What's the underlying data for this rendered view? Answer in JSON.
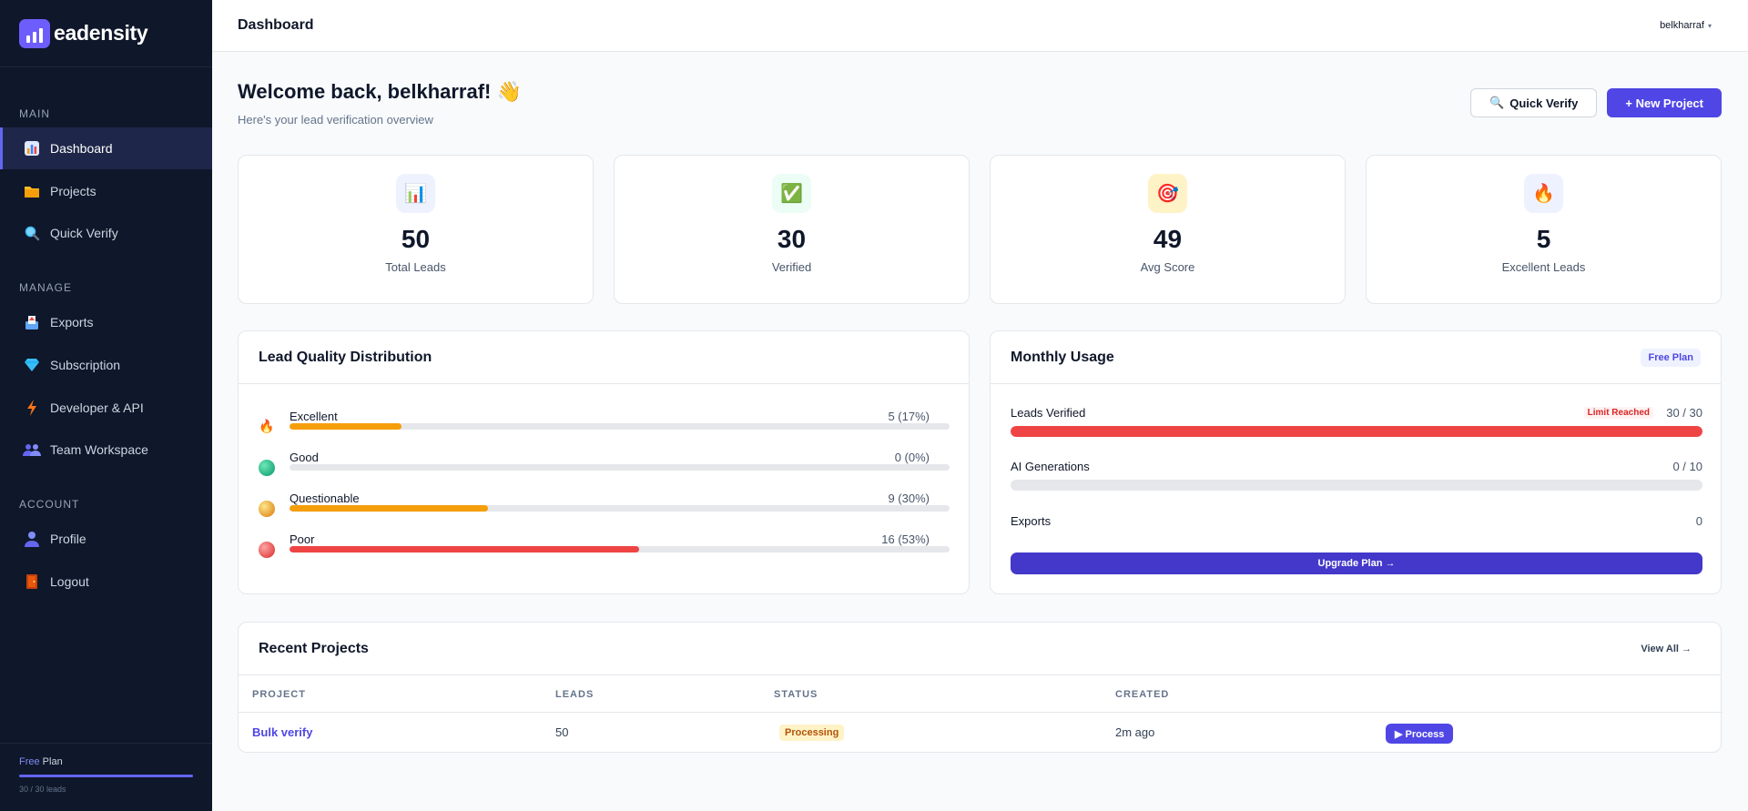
{
  "brand": {
    "name": "eadensity"
  },
  "sidebar": {
    "sections": [
      {
        "label": "MAIN"
      },
      {
        "label": "MANAGE"
      },
      {
        "label": "ACCOUNT"
      }
    ],
    "items": [
      {
        "label": "Dashboard",
        "icon": "bar-chart-icon"
      },
      {
        "label": "Projects",
        "icon": "folder-icon"
      },
      {
        "label": "Quick Verify",
        "icon": "magnifier-icon"
      },
      {
        "label": "Exports",
        "icon": "outbox-icon"
      },
      {
        "label": "Subscription",
        "icon": "diamond-icon"
      },
      {
        "label": "Developer & API",
        "icon": "lightning-icon"
      },
      {
        "label": "Team Workspace",
        "icon": "people-icon"
      },
      {
        "label": "Profile",
        "icon": "person-icon"
      },
      {
        "label": "Logout",
        "icon": "door-icon"
      }
    ],
    "plan": {
      "tier": "Free",
      "suffix": " Plan",
      "usage_text": "30 / 30 leads",
      "usage_fraction": 1.0
    }
  },
  "topbar": {
    "title": "Dashboard",
    "user": "belkharraf",
    "caret": "▾"
  },
  "welcome": {
    "title": "Welcome back, belkharraf! 👋",
    "subtitle": "Here's your lead verification overview"
  },
  "actions": {
    "quick_verify": "Quick Verify",
    "quick_verify_icon": "🔍",
    "new_project": "+ New Project"
  },
  "stats": [
    {
      "value": "50",
      "label": "Total Leads",
      "icon": "📊",
      "icon_bg": "#eef2ff"
    },
    {
      "value": "30",
      "label": "Verified",
      "icon": "✅",
      "icon_bg": "#ecfdf5"
    },
    {
      "value": "49",
      "label": "Avg Score",
      "icon": "🎯",
      "icon_bg": "#fef3c7"
    },
    {
      "value": "5",
      "label": "Excellent Leads",
      "icon": "🔥",
      "icon_bg": "#eef2ff"
    }
  ],
  "distribution": {
    "title": "Lead Quality Distribution",
    "rows": [
      {
        "name": "Excellent",
        "value": "5 (17%)",
        "fraction": 0.17,
        "color": "#f59e0b",
        "icon": "🔥"
      },
      {
        "name": "Good",
        "value": "0 (0%)",
        "fraction": 0.0,
        "color": "#10b981",
        "icon": ""
      },
      {
        "name": "Questionable",
        "value": "9 (30%)",
        "fraction": 0.3,
        "color": "#f59e0b",
        "icon": ""
      },
      {
        "name": "Poor",
        "value": "16 (53%)",
        "fraction": 0.53,
        "color": "#ef4444",
        "icon": ""
      }
    ]
  },
  "usage": {
    "title": "Monthly Usage",
    "plan_badge": "Free Plan",
    "rows": [
      {
        "name": "Leads Verified",
        "value": "30 / 30",
        "badge": "Limit Reached",
        "fraction": 1.0
      },
      {
        "name": "AI Generations",
        "value": "0 / 10",
        "fraction": 0.0
      },
      {
        "name": "Exports",
        "value": "0"
      }
    ],
    "upgrade": "Upgrade Plan →"
  },
  "projects": {
    "title": "Recent Projects",
    "view_all": "View All →",
    "columns": [
      "PROJECT",
      "LEADS",
      "STATUS",
      "CREATED"
    ],
    "rows": [
      {
        "name": "Bulk verify",
        "leads": "50",
        "status": "Processing",
        "created": "2m ago",
        "action": "▶ Process"
      }
    ]
  },
  "colors": {
    "accent": "#4f46e5",
    "sidebar_bg": "#0f172a",
    "danger": "#ef4444",
    "warning": "#f59e0b"
  }
}
